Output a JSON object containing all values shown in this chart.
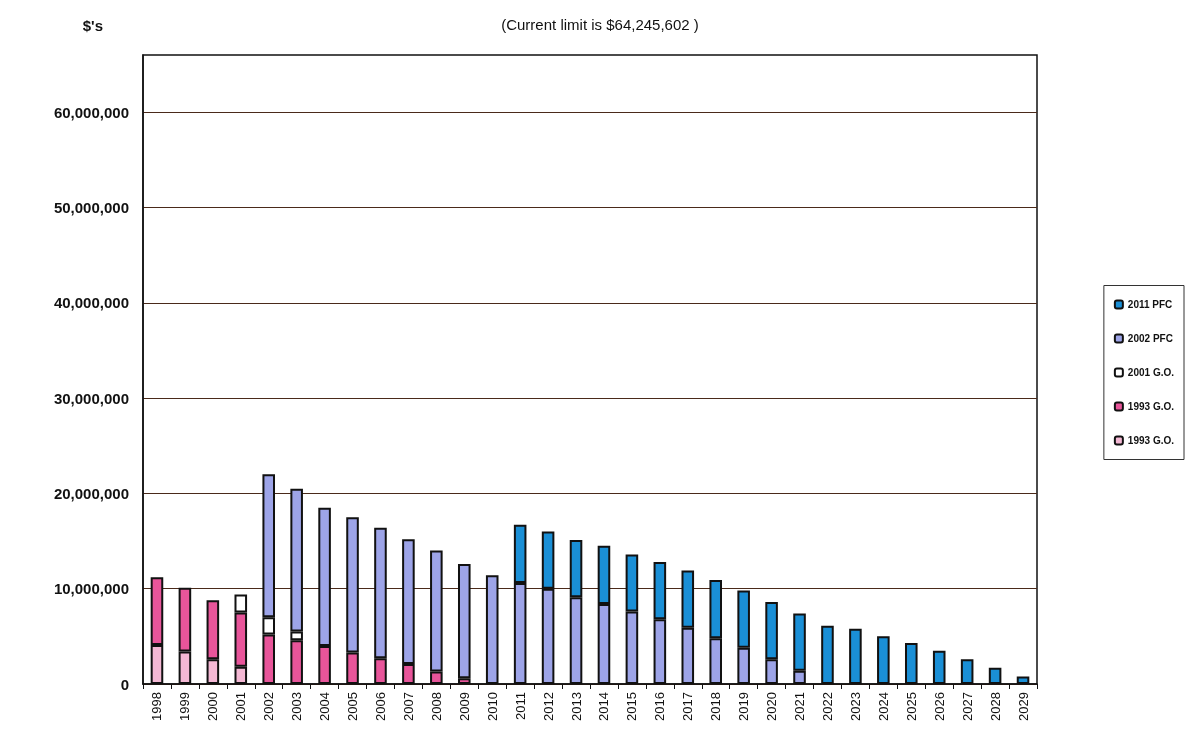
{
  "chart_data": {
    "type": "bar",
    "title": "(Current limit is $64,245,602 )",
    "ylabel": "$'s",
    "stacked": true,
    "grid": "y",
    "legend": "right",
    "categories": [
      "1998",
      "1999",
      "2000",
      "2001",
      "2002",
      "2003",
      "2004",
      "2005",
      "2006",
      "2007",
      "2008",
      "2009",
      "2010",
      "2011",
      "2012",
      "2013",
      "2014",
      "2015",
      "2016",
      "2017",
      "2018",
      "2019",
      "2020",
      "2021",
      "2022",
      "2023",
      "2024",
      "2025",
      "2026",
      "2027",
      "2028",
      "2029"
    ],
    "ylim": [
      0,
      66000000
    ],
    "yticks": [
      {
        "value": 0,
        "label": "0"
      },
      {
        "value": 10000000,
        "label": "10,000,000"
      },
      {
        "value": 20000000,
        "label": "20,000,000"
      },
      {
        "value": 30000000,
        "label": "30,000,000"
      },
      {
        "value": 40000000,
        "label": "40,000,000"
      },
      {
        "value": 50000000,
        "label": "50,000,000"
      },
      {
        "value": 60000000,
        "label": "60,000,000"
      }
    ],
    "series": [
      {
        "name": "1993 G.O.",
        "color": "#f4b8d4",
        "values": [
          4100000,
          3400000,
          2600000,
          1800000,
          null,
          null,
          null,
          null,
          null,
          null,
          null,
          null,
          null,
          null,
          null,
          null,
          null,
          null,
          null,
          null,
          null,
          null,
          null,
          null,
          null,
          null,
          null,
          null,
          null,
          null,
          null,
          null
        ]
      },
      {
        "name": "1993 G.O.",
        "color": "#e8559a",
        "values": [
          7100000,
          6700000,
          6200000,
          5700000,
          5200000,
          4600000,
          4000000,
          3300000,
          2700000,
          2100000,
          1300000,
          600000,
          null,
          null,
          null,
          null,
          null,
          null,
          null,
          null,
          null,
          null,
          null,
          null,
          null,
          null,
          null,
          null,
          null,
          null,
          null,
          null
        ]
      },
      {
        "name": "2001 G.O.",
        "color": "#ffffff",
        "values": [
          null,
          null,
          null,
          1900000,
          1800000,
          900000,
          null,
          null,
          null,
          null,
          null,
          null,
          null,
          null,
          null,
          null,
          null,
          null,
          null,
          null,
          null,
          null,
          null,
          null,
          null,
          null,
          null,
          null,
          null,
          null,
          null,
          null
        ]
      },
      {
        "name": "2002 PFC",
        "color": "#9da4e8",
        "values": [
          null,
          null,
          null,
          null,
          15000000,
          15000000,
          14500000,
          14200000,
          13700000,
          13100000,
          12700000,
          12000000,
          11400000,
          10600000,
          10000000,
          9100000,
          8400000,
          7600000,
          6800000,
          5900000,
          4800000,
          3800000,
          2600000,
          1400000,
          null,
          null,
          null,
          null,
          null,
          null,
          null,
          null
        ]
      },
      {
        "name": "2011 PFC",
        "color": "#1a8fd6",
        "values": [
          null,
          null,
          null,
          null,
          null,
          null,
          null,
          null,
          null,
          null,
          null,
          null,
          null,
          6100000,
          6000000,
          6000000,
          6100000,
          6000000,
          6000000,
          6000000,
          6100000,
          6000000,
          6000000,
          6000000,
          6100000,
          5800000,
          5000000,
          4300000,
          3500000,
          2600000,
          1700000,
          800000
        ]
      }
    ]
  }
}
